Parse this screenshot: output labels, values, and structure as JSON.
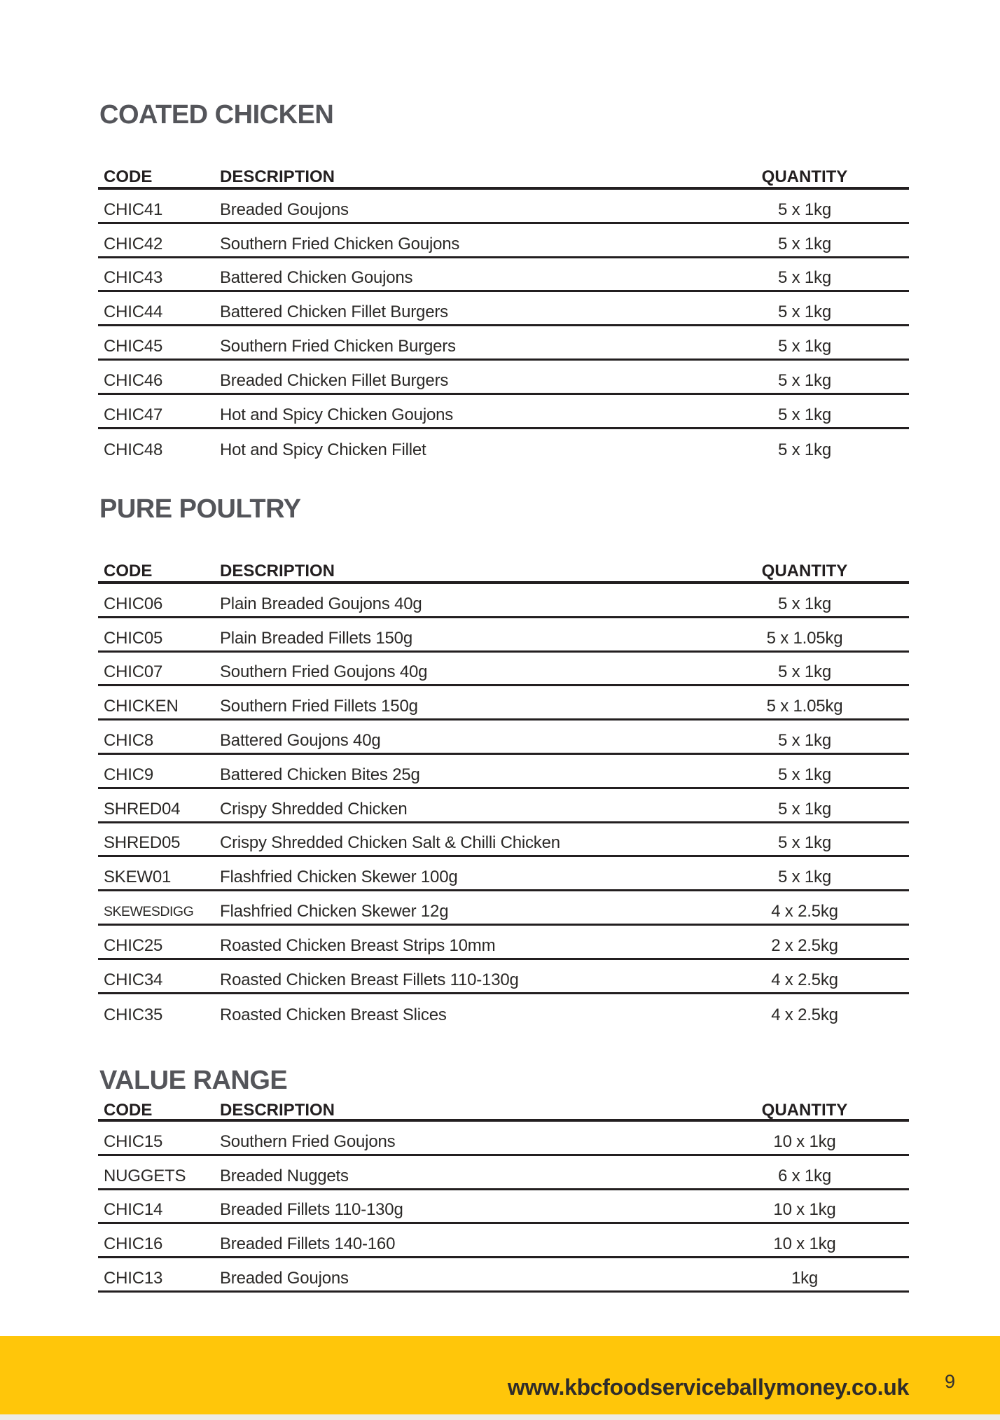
{
  "sections": [
    {
      "title": "COATED CHICKEN",
      "columns": {
        "code": "CODE",
        "description": "DESCRIPTION",
        "quantity": "QUANTITY"
      },
      "rows": [
        {
          "code": "CHIC41",
          "description": "Breaded Goujons",
          "quantity": "5 x 1kg"
        },
        {
          "code": "CHIC42",
          "description": "Southern Fried Chicken Goujons",
          "quantity": "5 x 1kg"
        },
        {
          "code": "CHIC43",
          "description": "Battered Chicken Goujons",
          "quantity": "5 x 1kg"
        },
        {
          "code": "CHIC44",
          "description": "Battered Chicken Fillet Burgers",
          "quantity": "5 x 1kg"
        },
        {
          "code": "CHIC45",
          "description": "Southern Fried Chicken Burgers",
          "quantity": "5 x 1kg"
        },
        {
          "code": "CHIC46",
          "description": "Breaded Chicken Fillet Burgers",
          "quantity": "5 x 1kg"
        },
        {
          "code": "CHIC47",
          "description": "Hot and Spicy Chicken Goujons",
          "quantity": "5 x 1kg"
        },
        {
          "code": "CHIC48",
          "description": "Hot and Spicy Chicken Fillet",
          "quantity": "5 x 1kg"
        }
      ]
    },
    {
      "title": "PURE POULTRY",
      "columns": {
        "code": "CODE",
        "description": "DESCRIPTION",
        "quantity": "QUANTITY"
      },
      "rows": [
        {
          "code": "CHIC06",
          "description": "Plain Breaded Goujons 40g",
          "quantity": "5 x 1kg"
        },
        {
          "code": "CHIC05",
          "description": "Plain Breaded Fillets 150g",
          "quantity": "5 x 1.05kg"
        },
        {
          "code": "CHIC07",
          "description": "Southern Fried Goujons 40g",
          "quantity": "5 x 1kg"
        },
        {
          "code": "CHICKEN",
          "description": "Southern Fried Fillets 150g",
          "quantity": "5 x 1.05kg"
        },
        {
          "code": "CHIC8",
          "description": "Battered Goujons 40g",
          "quantity": "5 x 1kg"
        },
        {
          "code": "CHIC9",
          "description": "Battered Chicken Bites 25g",
          "quantity": "5 x 1kg"
        },
        {
          "code": "SHRED04",
          "description": "Crispy Shredded Chicken",
          "quantity": "5 x 1kg"
        },
        {
          "code": "SHRED05",
          "description": "Crispy Shredded Chicken Salt & Chilli Chicken",
          "quantity": "5 x 1kg"
        },
        {
          "code": "SKEW01",
          "description": "Flashfried Chicken Skewer 100g",
          "quantity": "5 x 1kg"
        },
        {
          "code": "SKEWESDIGG",
          "description": "Flashfried Chicken Skewer 12g",
          "quantity": "4 x 2.5kg"
        },
        {
          "code": "CHIC25",
          "description": "Roasted Chicken Breast Strips 10mm",
          "quantity": "2 x 2.5kg"
        },
        {
          "code": "CHIC34",
          "description": "Roasted Chicken Breast Fillets 110-130g",
          "quantity": "4 x 2.5kg"
        },
        {
          "code": "CHIC35",
          "description": "Roasted Chicken Breast Slices",
          "quantity": "4 x 2.5kg"
        }
      ]
    },
    {
      "title": "VALUE RANGE",
      "columns": {
        "code": "CODE",
        "description": "DESCRIPTION",
        "quantity": "QUANTITY"
      },
      "rows": [
        {
          "code": "CHIC15",
          "description": "Southern Fried Goujons",
          "quantity": "10 x 1kg"
        },
        {
          "code": "NUGGETS",
          "description": "Breaded Nuggets",
          "quantity": "6 x 1kg"
        },
        {
          "code": "CHIC14",
          "description": "Breaded Fillets 110-130g",
          "quantity": "10 x 1kg"
        },
        {
          "code": "CHIC16",
          "description": "Breaded Fillets 140-160",
          "quantity": "10 x 1kg"
        },
        {
          "code": "CHIC13",
          "description": "Breaded Goujons",
          "quantity": "1kg"
        }
      ]
    }
  ],
  "footer": {
    "website": "www.kbcfoodserviceballymoney.co.uk",
    "page_number": "9"
  },
  "colors": {
    "accent_yellow": "#ffc60a",
    "table_line": "#231f20",
    "title_gray": "#54555a",
    "body_text": "#2b2927"
  }
}
